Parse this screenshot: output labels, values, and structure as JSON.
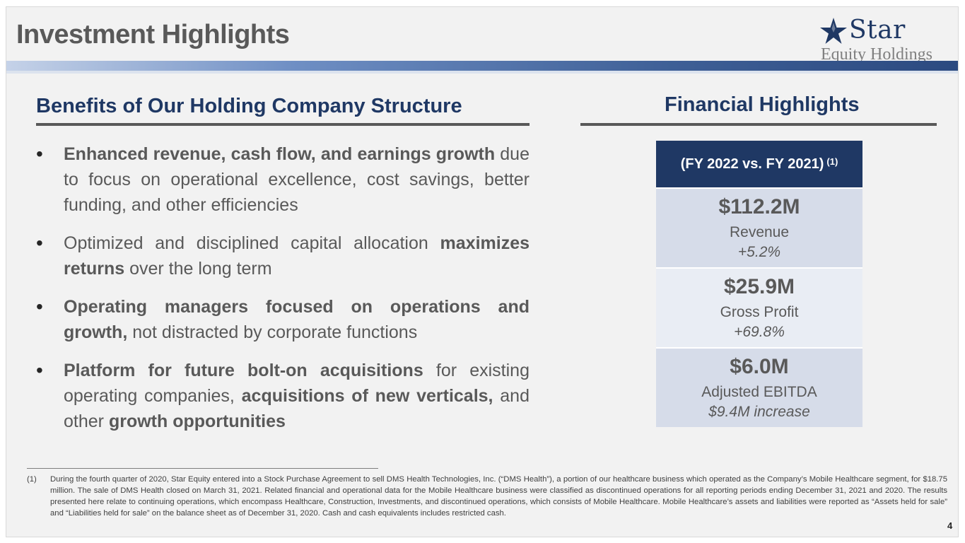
{
  "header": {
    "title": "Investment Highlights",
    "logo": {
      "name": "star-logo-icon",
      "line1": "Star",
      "line2": "Equity Holdings"
    }
  },
  "benefits": {
    "heading": "Benefits of Our Holding Company Structure",
    "items": [
      [
        {
          "text": "Enhanced revenue, cash flow, and earnings growth",
          "bold": true
        },
        {
          "text": " due to focus on operational excellence, cost savings, better funding, and other efficiencies",
          "bold": false
        }
      ],
      [
        {
          "text": "Optimized and disciplined capital allocation ",
          "bold": false
        },
        {
          "text": "maximizes returns",
          "bold": true
        },
        {
          "text": " over the long term",
          "bold": false
        }
      ],
      [
        {
          "text": "Operating managers focused on operations and growth,",
          "bold": true
        },
        {
          "text": " not distracted by corporate functions",
          "bold": false
        }
      ],
      [
        {
          "text": "Platform for future bolt-on acquisitions",
          "bold": true
        },
        {
          "text": " for existing operating companies, ",
          "bold": false
        },
        {
          "text": "acquisitions of new verticals,",
          "bold": true
        },
        {
          "text": " and other ",
          "bold": false
        },
        {
          "text": "growth opportunities",
          "bold": true
        }
      ]
    ]
  },
  "financial": {
    "heading": "Financial Highlights",
    "period": "(FY 2022 vs. FY 2021)",
    "period_note": "(1)",
    "metrics": [
      {
        "value": "$112.2M",
        "label": "Revenue",
        "change": "+5.2%"
      },
      {
        "value": "$25.9M",
        "label": "Gross Profit",
        "change": "+69.8%"
      },
      {
        "value": "$6.0M",
        "label": "Adjusted EBITDA",
        "change": "$9.4M increase"
      }
    ]
  },
  "footnote": {
    "marker": "(1)",
    "text": "During the fourth quarter of 2020, Star Equity entered into a Stock Purchase Agreement to sell DMS Health Technologies, Inc. (“DMS Health”), a portion of our healthcare business which operated as the Company’s Mobile Healthcare segment, for $18.75 million. The sale of DMS Health closed on March 31, 2021. Related financial and operational data for the Mobile Healthcare business were classified as discontinued operations for all reporting periods ending December 31, 2021 and 2020. The results presented here relate to continuing operations, which encompass Healthcare, Construction, Investments, and discontinued operations, which consists of Mobile Healthcare. Mobile Healthcare’s assets and liabilities were reported as “Assets held for sale” and “Liabilities held for sale” on the balance sheet as of December 31, 2020. Cash and cash equivalents includes restricted cash."
  },
  "page_number": "4"
}
